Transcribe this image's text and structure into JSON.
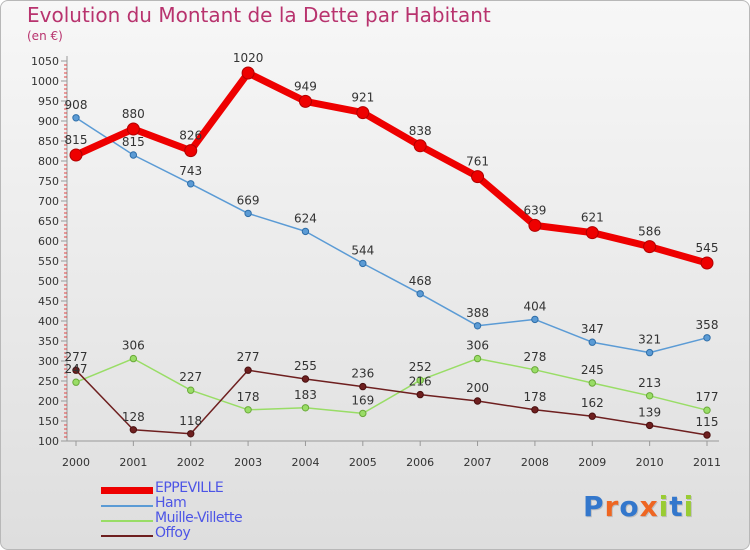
{
  "header": {
    "title": "Evolution du Montant de la Dette par Habitant",
    "subtitle": "(en €)"
  },
  "colors": {
    "title": "#b8336e",
    "legend_text": "#4d55e6",
    "EPPEVILLE": "#ee0000",
    "Ham": "#5b9bd5",
    "Muille-Villette": "#99dd66",
    "Offoy": "#6e1f1f"
  },
  "logo": {
    "text": "Proxiti",
    "letter_colors": [
      "#3377cc",
      "#ee6622",
      "#3377cc",
      "#ee6622",
      "#99cc33",
      "#3377cc",
      "#99cc33"
    ]
  },
  "chart_data": {
    "type": "line",
    "title": "Evolution du Montant de la Dette par Habitant",
    "subtitle": "(en €)",
    "xlabel": "",
    "ylabel": "",
    "x": [
      "2000",
      "2001",
      "2002",
      "2003",
      "2004",
      "2005",
      "2006",
      "2007",
      "2008",
      "2009",
      "2010",
      "2011"
    ],
    "yticks": [
      100,
      150,
      200,
      250,
      300,
      350,
      400,
      450,
      500,
      550,
      600,
      650,
      700,
      750,
      800,
      850,
      900,
      950,
      1000,
      1050
    ],
    "ylim": [
      100,
      1050
    ],
    "grid": false,
    "legend_position": "bottom-left",
    "series": [
      {
        "name": "EPPEVILLE",
        "values": [
          815,
          880,
          826,
          1020,
          949,
          921,
          838,
          761,
          639,
          621,
          586,
          545
        ]
      },
      {
        "name": "Ham",
        "values": [
          908,
          815,
          743,
          669,
          624,
          544,
          468,
          388,
          404,
          347,
          321,
          358
        ]
      },
      {
        "name": "Muille-Villette",
        "values": [
          247,
          306,
          227,
          178,
          183,
          169,
          252,
          306,
          278,
          245,
          213,
          177
        ]
      },
      {
        "name": "Offoy",
        "values": [
          277,
          128,
          118,
          277,
          255,
          236,
          216,
          200,
          178,
          162,
          139,
          115
        ]
      }
    ]
  }
}
